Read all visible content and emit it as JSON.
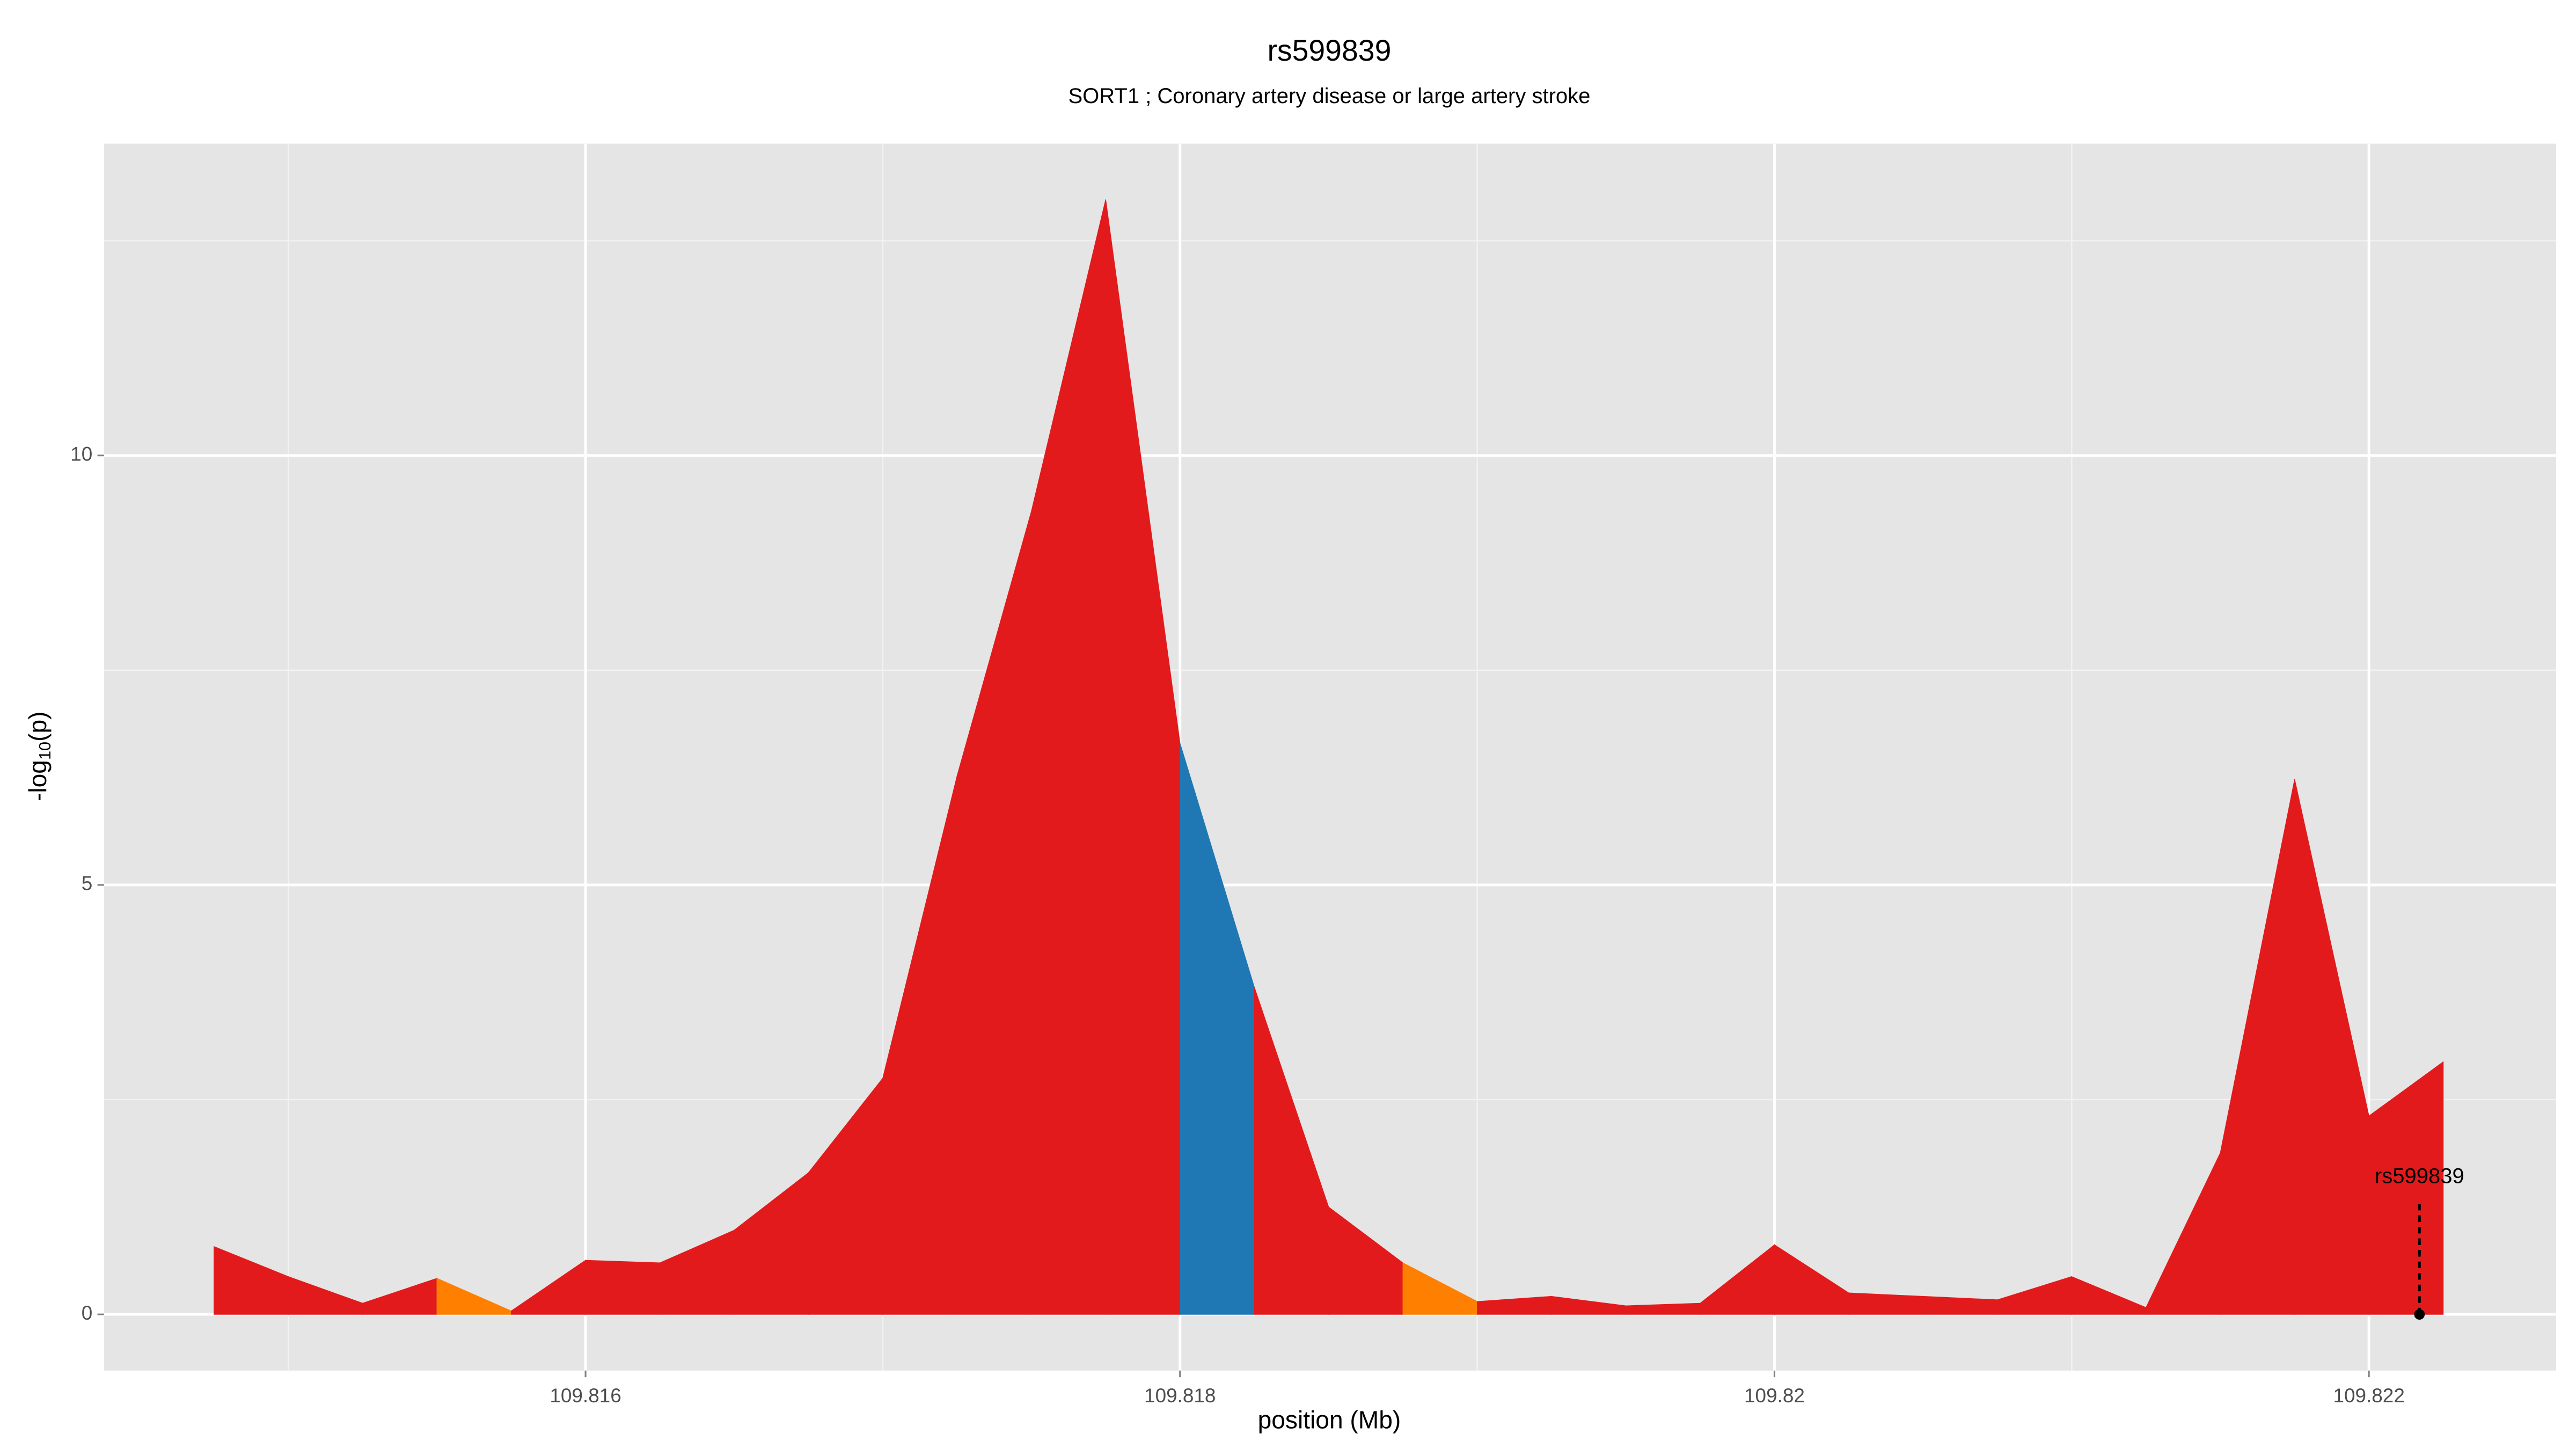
{
  "chart_data": {
    "type": "area",
    "title": "rs599839",
    "subtitle": "SORT1 ; Coronary artery disease or large artery stroke",
    "x_label": "position (Mb)",
    "y_label": {
      "prefix": "-log",
      "subscript": "10",
      "suffix": "(p)"
    },
    "x": [
      109.81475,
      109.815,
      109.81525,
      109.8155,
      109.81575,
      109.816,
      109.81625,
      109.8165,
      109.81675,
      109.817,
      109.81725,
      109.8175,
      109.81775,
      109.818,
      109.81825,
      109.8185,
      109.81875,
      109.819,
      109.81925,
      109.8195,
      109.81975,
      109.82,
      109.82025,
      109.8205,
      109.82075,
      109.821,
      109.82125,
      109.8215,
      109.82175,
      109.822,
      109.82225
    ],
    "values": [
      0.79,
      0.44,
      0.13,
      0.42,
      0.04,
      0.63,
      0.6,
      0.98,
      1.65,
      2.75,
      6.27,
      9.35,
      12.98,
      6.65,
      3.81,
      1.25,
      0.6,
      0.15,
      0.21,
      0.1,
      0.13,
      0.81,
      0.25,
      0.21,
      0.17,
      0.44,
      0.08,
      1.88,
      6.23,
      2.31,
      2.94
    ],
    "fill_colors": [
      "#e31a1c",
      "#e31a1c",
      "#e31a1c",
      "#ff7f00",
      "#e31a1c",
      "#e31a1c",
      "#e31a1c",
      "#e31a1c",
      "#e31a1c",
      "#e31a1c",
      "#e31a1c",
      "#e31a1c",
      "#e31a1c",
      "#1f78b4",
      "#e31a1c",
      "#e31a1c",
      "#ff7f00",
      "#e31a1c",
      "#e31a1c",
      "#e31a1c",
      "#e31a1c",
      "#e31a1c",
      "#e31a1c",
      "#e31a1c",
      "#e31a1c",
      "#e31a1c",
      "#e31a1c",
      "#e31a1c",
      "#e31a1c",
      "#e31a1c",
      "#e31a1c"
    ],
    "xlim": [
      109.81438,
      109.82263
    ],
    "ylim": [
      -0.654,
      13.63
    ],
    "xticks": [
      109.816,
      109.818,
      109.82,
      109.822
    ],
    "yticks": [
      0,
      5,
      10
    ],
    "x_minor_ticks": [
      109.815,
      109.817,
      109.819,
      109.821
    ],
    "y_minor_ticks": [
      2.5,
      7.5,
      12.5
    ],
    "grid": true,
    "annotation": {
      "text": "rs599839",
      "x": 109.82217,
      "y": 0
    }
  }
}
